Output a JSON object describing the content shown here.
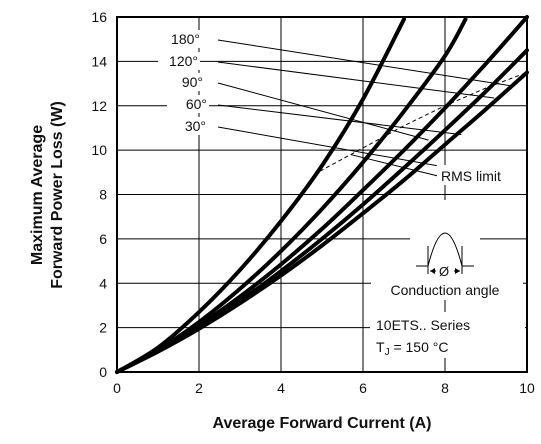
{
  "chart_data": {
    "type": "line",
    "xlabel": "Average Forward Current (A)",
    "ylabel_lines": [
      "Maximum Average",
      "Forward Power Loss (W)"
    ],
    "xlim": [
      0,
      10
    ],
    "ylim": [
      0,
      16
    ],
    "x_ticks": [
      "0",
      "2",
      "4",
      "6",
      "8",
      "10"
    ],
    "y_ticks": [
      "0",
      "2",
      "4",
      "6",
      "8",
      "10",
      "12",
      "14",
      "16"
    ],
    "grid": true,
    "series": [
      {
        "name": "180°",
        "x": [
          0,
          1,
          2,
          3,
          4,
          5,
          6,
          7,
          8,
          9,
          10
        ],
        "y": [
          0,
          0.92,
          1.95,
          3.1,
          4.35,
          5.7,
          7.15,
          8.65,
          10.25,
          11.85,
          13.5
        ]
      },
      {
        "name": "120°",
        "x": [
          0,
          1,
          2,
          3,
          4,
          5,
          6,
          7,
          8,
          9,
          10
        ],
        "y": [
          0,
          0.95,
          2.0,
          3.2,
          4.55,
          6.0,
          7.55,
          9.2,
          10.9,
          12.65,
          14.5
        ]
      },
      {
        "name": "90°",
        "x": [
          0,
          1,
          2,
          3,
          4,
          5,
          6,
          7,
          8,
          9,
          10
        ],
        "y": [
          0,
          0.97,
          2.1,
          3.4,
          4.85,
          6.45,
          8.2,
          10.0,
          11.9,
          13.9,
          16.0
        ]
      },
      {
        "name": "60°",
        "x": [
          0,
          1,
          2,
          3,
          4,
          5,
          6,
          7,
          8,
          8.5
        ],
        "y": [
          0,
          1.0,
          2.25,
          3.75,
          5.45,
          7.35,
          9.45,
          11.75,
          14.25,
          15.9
        ]
      },
      {
        "name": "30°",
        "x": [
          0,
          1,
          2,
          3,
          4,
          5,
          6,
          7
        ],
        "y": [
          0,
          1.1,
          2.7,
          4.6,
          6.8,
          9.3,
          12.3,
          15.9
        ]
      }
    ],
    "rms_limit": {
      "label": "RMS limit",
      "x": [
        4.8,
        6.0,
        7.0,
        8.0,
        9.0,
        10.0
      ],
      "y": [
        8.9,
        10.1,
        11.1,
        12.0,
        12.8,
        13.5
      ]
    },
    "annotations": {
      "series_labels": [
        "180°",
        "120°",
        "90°",
        "60°",
        "30°"
      ],
      "conduction_angle_symbol": "Ø",
      "conduction_angle_label": "Conduction angle",
      "series_name": "10ETS.. Series",
      "tj_prefix": "T",
      "tj_subscript": "J",
      "tj_value": " = 150 °C"
    }
  }
}
